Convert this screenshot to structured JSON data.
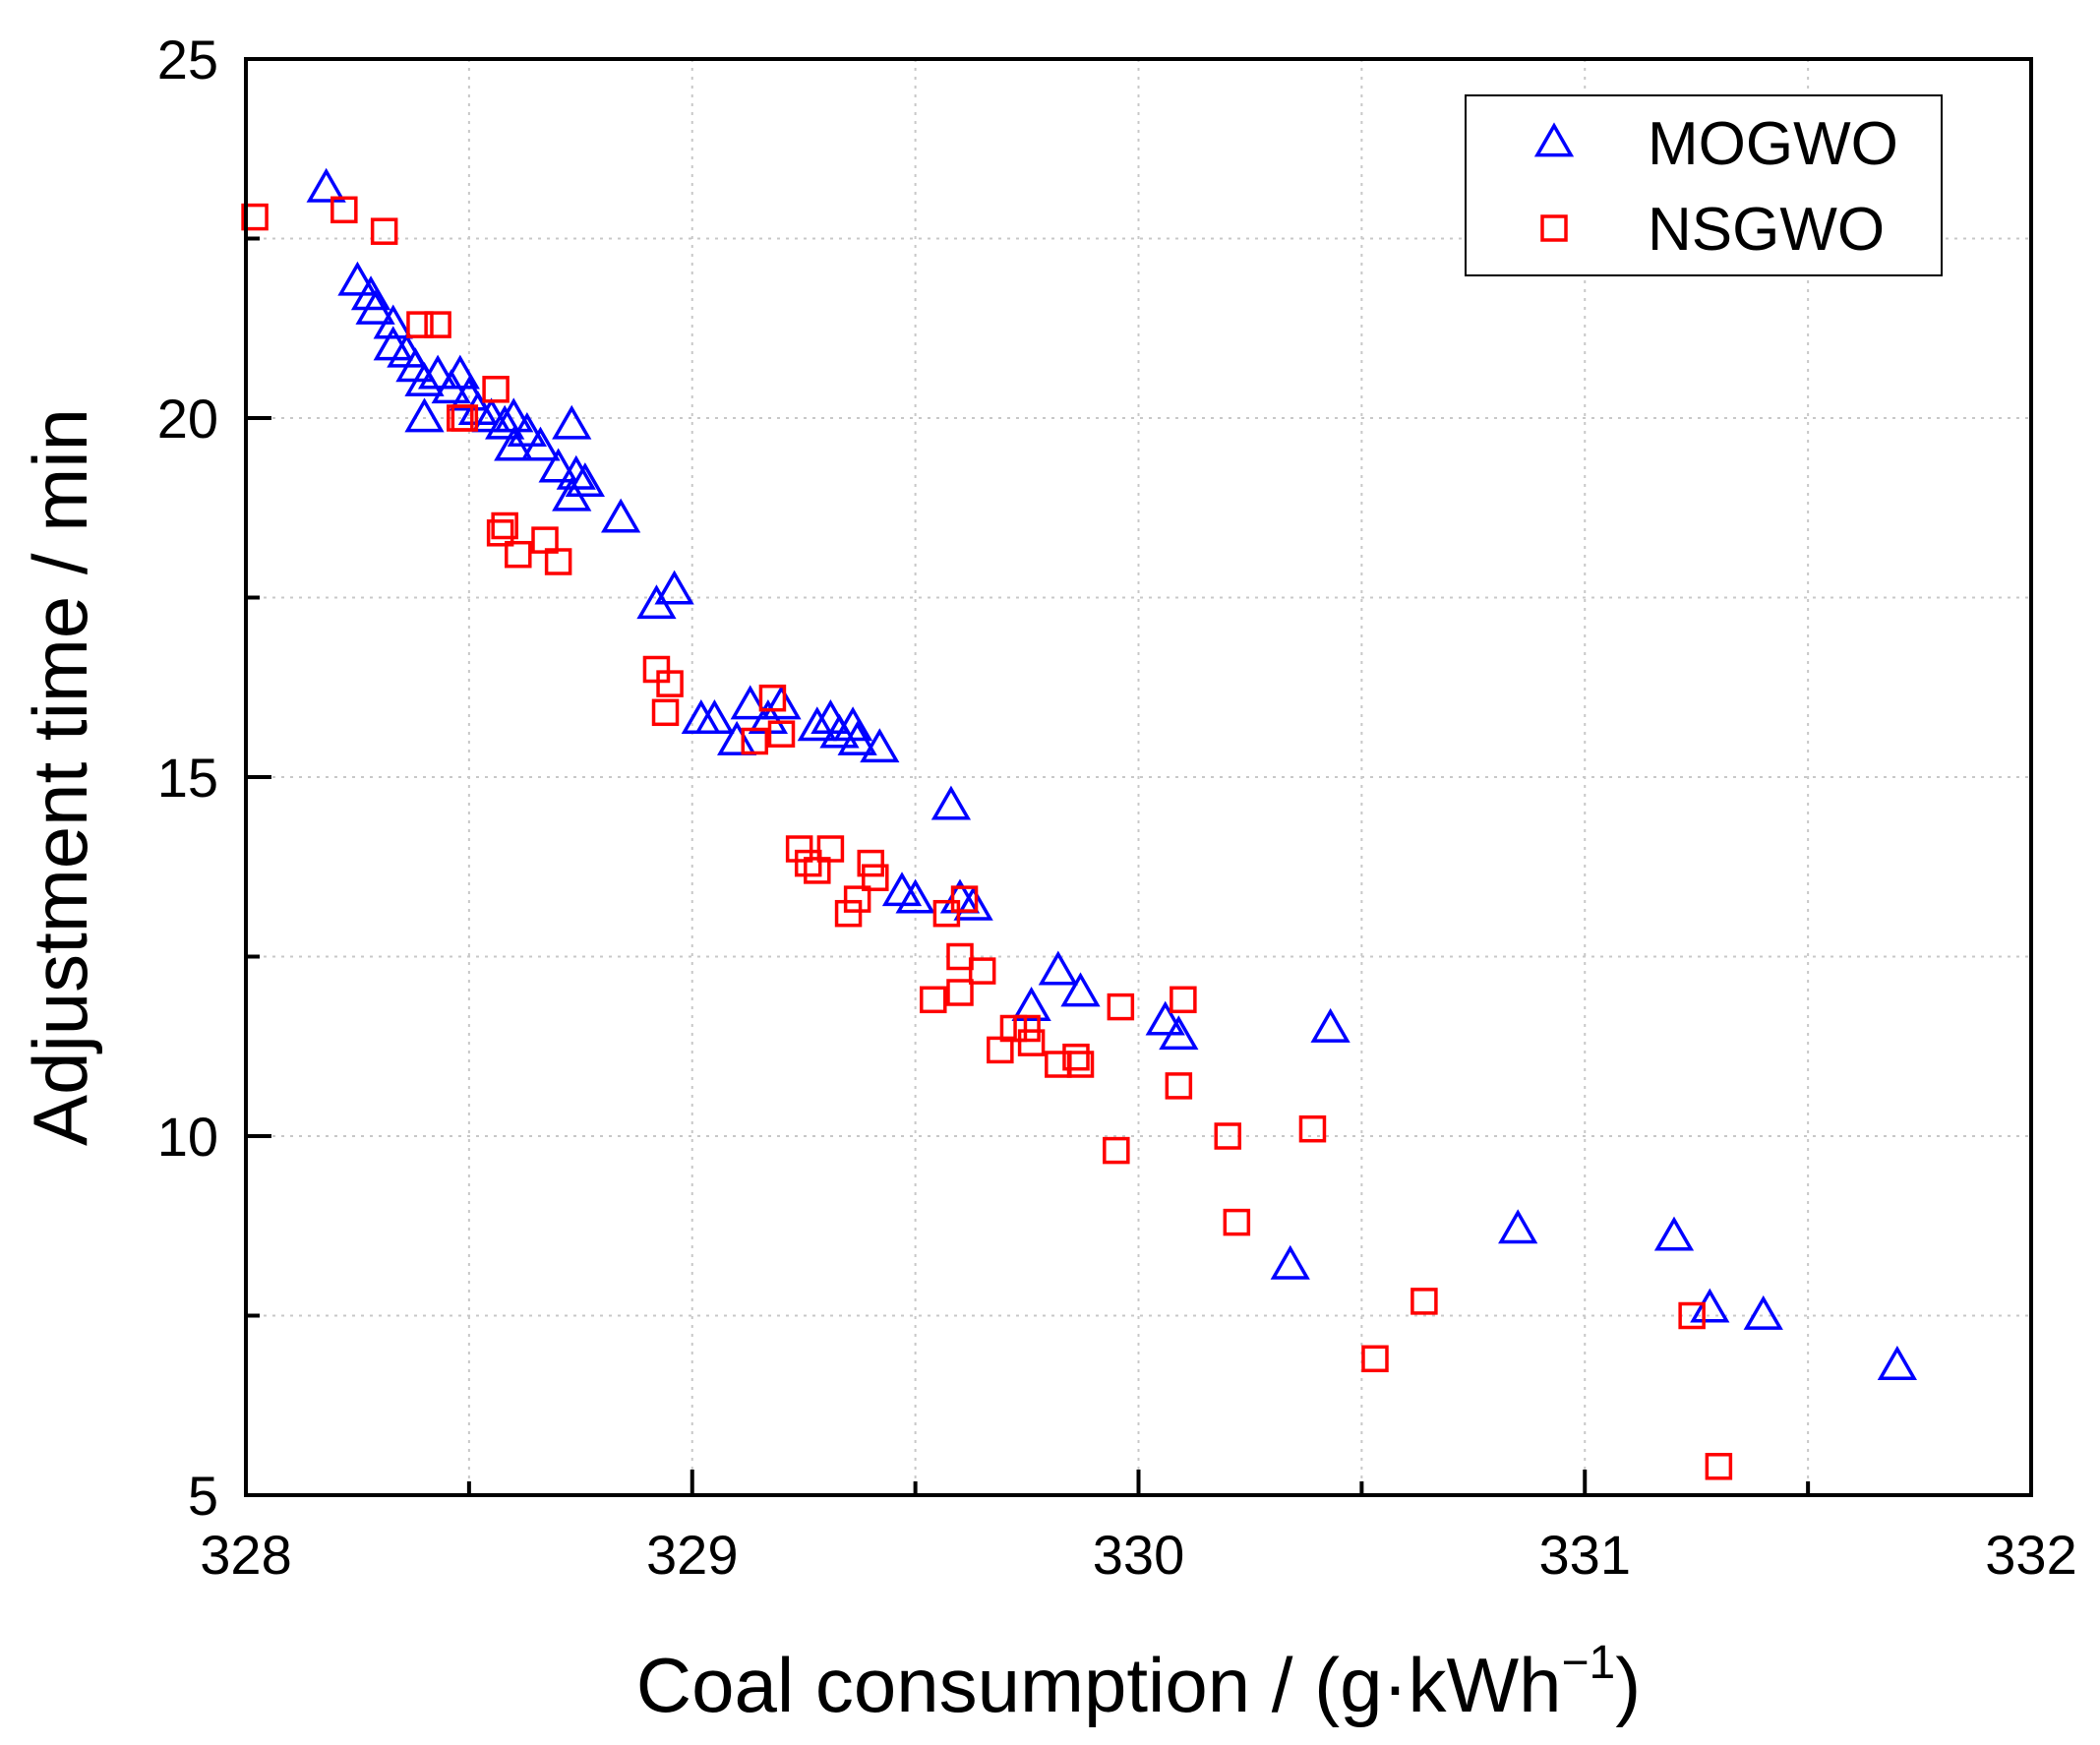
{
  "chart_data": {
    "type": "scatter",
    "title": "",
    "xlabel": "Coal consumption / (g·kWh",
    "xlabel_sup": "−1",
    "xlabel_close": ")",
    "ylabel": "Adjustment time / min",
    "xlim": [
      328,
      332
    ],
    "ylim": [
      5,
      25
    ],
    "xticks": [
      328,
      329,
      330,
      331,
      332
    ],
    "yticks": [
      5,
      10,
      15,
      20,
      25
    ],
    "xtick_labels": [
      "328",
      "329",
      "330",
      "331",
      "332"
    ],
    "ytick_labels": [
      "5",
      "10",
      "15",
      "20",
      "25"
    ],
    "grid": true,
    "legend_position": "top-right",
    "colors": {
      "MOGWO": "#0000ff",
      "NSGWO": "#ff0000"
    },
    "series": [
      {
        "name": "MOGWO",
        "marker": "triangle",
        "points": [
          [
            328.18,
            23.2
          ],
          [
            328.25,
            21.9
          ],
          [
            328.28,
            21.7
          ],
          [
            328.29,
            21.5
          ],
          [
            328.33,
            21.3
          ],
          [
            328.33,
            21.0
          ],
          [
            328.36,
            20.9
          ],
          [
            328.38,
            20.7
          ],
          [
            328.4,
            20.5
          ],
          [
            328.43,
            20.6
          ],
          [
            328.46,
            20.4
          ],
          [
            328.48,
            20.6
          ],
          [
            328.5,
            20.3
          ],
          [
            328.52,
            20.1
          ],
          [
            328.4,
            20.0
          ],
          [
            328.55,
            20.0
          ],
          [
            328.58,
            19.9
          ],
          [
            328.6,
            20.0
          ],
          [
            328.63,
            19.8
          ],
          [
            328.6,
            19.6
          ],
          [
            328.66,
            19.6
          ],
          [
            328.7,
            19.3
          ],
          [
            328.73,
            19.9
          ],
          [
            328.74,
            19.2
          ],
          [
            328.76,
            19.1
          ],
          [
            328.73,
            18.9
          ],
          [
            328.84,
            18.6
          ],
          [
            328.92,
            17.4
          ],
          [
            328.96,
            17.6
          ],
          [
            329.02,
            15.8
          ],
          [
            329.05,
            15.8
          ],
          [
            329.1,
            15.5
          ],
          [
            329.13,
            16.0
          ],
          [
            329.17,
            15.8
          ],
          [
            329.2,
            16.0
          ],
          [
            329.28,
            15.7
          ],
          [
            329.31,
            15.8
          ],
          [
            329.33,
            15.6
          ],
          [
            329.36,
            15.7
          ],
          [
            329.37,
            15.5
          ],
          [
            329.42,
            15.4
          ],
          [
            329.47,
            13.4
          ],
          [
            329.5,
            13.3
          ],
          [
            329.58,
            14.6
          ],
          [
            329.6,
            13.3
          ],
          [
            329.63,
            13.2
          ],
          [
            329.76,
            11.8
          ],
          [
            329.82,
            12.3
          ],
          [
            329.87,
            12.0
          ],
          [
            330.06,
            11.6
          ],
          [
            330.09,
            11.4
          ],
          [
            330.34,
            8.2
          ],
          [
            330.43,
            11.5
          ],
          [
            330.85,
            8.7
          ],
          [
            331.2,
            8.6
          ],
          [
            331.28,
            7.6
          ],
          [
            331.4,
            7.5
          ],
          [
            331.7,
            6.8
          ]
        ]
      },
      {
        "name": "NSGWO",
        "marker": "square",
        "points": [
          [
            328.02,
            22.8
          ],
          [
            328.22,
            22.9
          ],
          [
            328.31,
            22.6
          ],
          [
            328.39,
            21.3
          ],
          [
            328.43,
            21.3
          ],
          [
            328.48,
            20.0
          ],
          [
            328.49,
            20.0
          ],
          [
            328.56,
            20.4
          ],
          [
            328.57,
            18.4
          ],
          [
            328.58,
            18.5
          ],
          [
            328.61,
            18.1
          ],
          [
            328.67,
            18.3
          ],
          [
            328.7,
            18.0
          ],
          [
            328.92,
            16.5
          ],
          [
            328.94,
            15.9
          ],
          [
            328.95,
            16.3
          ],
          [
            329.14,
            15.5
          ],
          [
            329.18,
            16.1
          ],
          [
            329.2,
            15.6
          ],
          [
            329.24,
            14.0
          ],
          [
            329.26,
            13.8
          ],
          [
            329.28,
            13.7
          ],
          [
            329.31,
            14.0
          ],
          [
            329.35,
            13.1
          ],
          [
            329.37,
            13.3
          ],
          [
            329.4,
            13.8
          ],
          [
            329.41,
            13.6
          ],
          [
            329.54,
            11.9
          ],
          [
            329.57,
            13.1
          ],
          [
            329.6,
            12.5
          ],
          [
            329.6,
            12.0
          ],
          [
            329.61,
            13.3
          ],
          [
            329.65,
            12.3
          ],
          [
            329.69,
            11.2
          ],
          [
            329.72,
            11.5
          ],
          [
            329.75,
            11.5
          ],
          [
            329.76,
            11.3
          ],
          [
            329.82,
            11.0
          ],
          [
            329.86,
            11.1
          ],
          [
            329.87,
            11.0
          ],
          [
            329.95,
            9.8
          ],
          [
            329.96,
            11.8
          ],
          [
            330.09,
            10.7
          ],
          [
            330.1,
            11.9
          ],
          [
            330.2,
            10.0
          ],
          [
            330.22,
            8.8
          ],
          [
            330.39,
            10.1
          ],
          [
            330.53,
            6.9
          ],
          [
            330.64,
            7.7
          ],
          [
            331.24,
            7.5
          ],
          [
            331.3,
            5.4
          ]
        ]
      }
    ]
  }
}
